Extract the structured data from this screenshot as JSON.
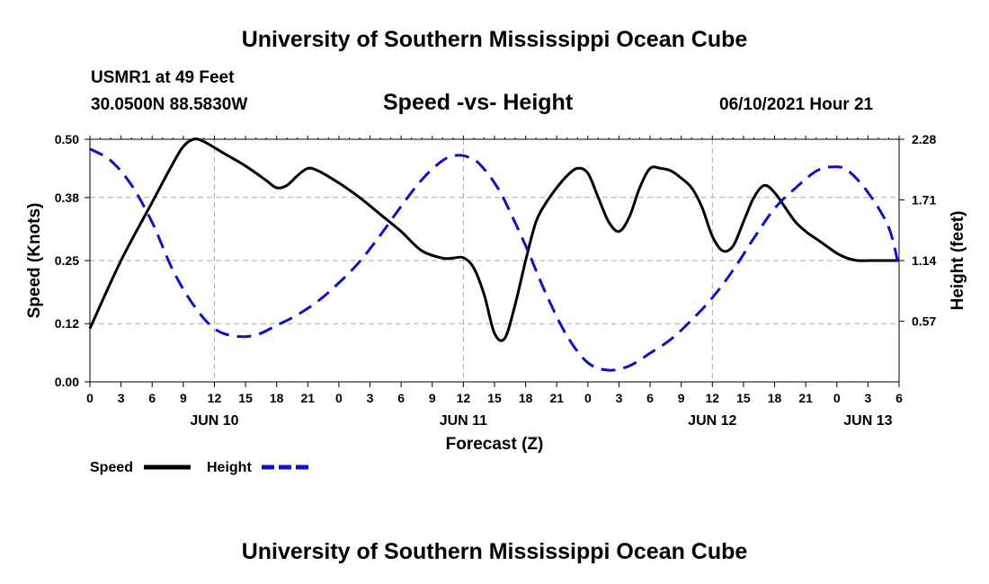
{
  "header": {
    "title": "University of Southern Mississippi Ocean Cube",
    "station": "USMR1 at 49 Feet",
    "coords": "30.0500N  88.5830W",
    "chart_title": "Speed -vs- Height",
    "run_time": "06/10/2021 Hour 21"
  },
  "footer": {
    "title": "University of Southern Mississippi Ocean Cube"
  },
  "chart_data": {
    "type": "line",
    "title": "Speed -vs- Height",
    "xlabel": "Forecast (Z)",
    "ylabel": "Speed (Knots)",
    "y2label": "Height (feet)",
    "xlim": [
      0,
      78
    ],
    "ylim": [
      0,
      0.5
    ],
    "y2lim": [
      0,
      2.28
    ],
    "x_ticks": [
      0,
      3,
      6,
      9,
      12,
      15,
      18,
      21,
      24,
      27,
      30,
      33,
      36,
      39,
      42,
      45,
      48,
      51,
      54,
      57,
      60,
      63,
      66,
      69,
      72,
      75,
      78
    ],
    "x_tick_labels": [
      "0",
      "3",
      "6",
      "9",
      "12",
      "15",
      "18",
      "21",
      "0",
      "3",
      "6",
      "9",
      "12",
      "15",
      "18",
      "21",
      "0",
      "3",
      "6",
      "9",
      "12",
      "15",
      "18",
      "21",
      "0",
      "3",
      "6"
    ],
    "date_labels": [
      {
        "x": 12,
        "label": "JUN 10"
      },
      {
        "x": 36,
        "label": "JUN 11"
      },
      {
        "x": 60,
        "label": "JUN 12"
      },
      {
        "x": 75,
        "label": "JUN 13"
      }
    ],
    "y_ticks": [
      0.0,
      0.12,
      0.25,
      0.38,
      0.5
    ],
    "y_tick_labels": [
      "0.00",
      "0.12",
      "0.25",
      "0.38",
      "0.50"
    ],
    "y2_ticks": [
      0.57,
      1.14,
      1.71,
      2.28
    ],
    "y2_tick_labels": [
      "0.57",
      "1.14",
      "1.71",
      "2.28"
    ],
    "grid": true,
    "legend_position": "bottom-left",
    "series": [
      {
        "name": "Speed",
        "axis": "left",
        "color": "#000000",
        "dash": "solid",
        "x": [
          0,
          3,
          6,
          8,
          9,
          10,
          11,
          13,
          15,
          17,
          18,
          19,
          20,
          21,
          22,
          24,
          26,
          28,
          30,
          32,
          34,
          35,
          36,
          37,
          38,
          39,
          40,
          41,
          42,
          43,
          44,
          45,
          46,
          47,
          48,
          49,
          50,
          51,
          52,
          53,
          54,
          55,
          56,
          57,
          58,
          59,
          60,
          61,
          62,
          63,
          64,
          65,
          66,
          67,
          68,
          69,
          70,
          71,
          72,
          73,
          74,
          75,
          76,
          77,
          78
        ],
        "values": [
          0.11,
          0.25,
          0.37,
          0.45,
          0.485,
          0.5,
          0.495,
          0.47,
          0.445,
          0.415,
          0.4,
          0.405,
          0.425,
          0.44,
          0.435,
          0.41,
          0.38,
          0.345,
          0.31,
          0.27,
          0.255,
          0.255,
          0.256,
          0.235,
          0.18,
          0.1,
          0.09,
          0.16,
          0.25,
          0.33,
          0.37,
          0.4,
          0.425,
          0.44,
          0.43,
          0.38,
          0.33,
          0.31,
          0.34,
          0.4,
          0.44,
          0.44,
          0.435,
          0.42,
          0.4,
          0.36,
          0.3,
          0.27,
          0.28,
          0.33,
          0.38,
          0.405,
          0.39,
          0.36,
          0.33,
          0.31,
          0.295,
          0.28,
          0.265,
          0.255,
          0.25,
          0.25,
          0.25,
          0.25,
          0.25
        ]
      },
      {
        "name": "Height",
        "axis": "right",
        "color": "#1010c8",
        "dash": "dashed",
        "x": [
          0,
          2,
          4,
          6,
          8,
          10,
          12,
          14,
          16,
          18,
          20,
          22,
          24,
          26,
          28,
          30,
          32,
          34,
          35.5,
          37,
          38,
          39,
          40,
          42,
          44,
          46,
          48,
          50,
          52,
          54,
          56,
          58,
          60,
          62,
          64,
          66,
          68,
          70,
          71.5,
          73,
          75,
          77,
          78
        ],
        "values": [
          2.19,
          2.08,
          1.85,
          1.5,
          1.05,
          0.72,
          0.5,
          0.43,
          0.44,
          0.53,
          0.63,
          0.76,
          0.93,
          1.13,
          1.38,
          1.65,
          1.9,
          2.08,
          2.13,
          2.09,
          2.0,
          1.87,
          1.7,
          1.28,
          0.82,
          0.43,
          0.18,
          0.11,
          0.15,
          0.27,
          0.4,
          0.58,
          0.79,
          1.05,
          1.35,
          1.63,
          1.82,
          1.98,
          2.02,
          1.99,
          1.78,
          1.45,
          1.07
        ]
      }
    ]
  }
}
